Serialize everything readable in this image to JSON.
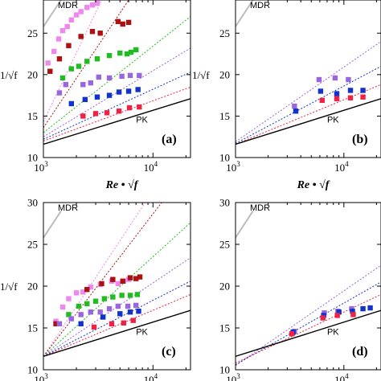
{
  "chart_data": [
    {
      "type": "scatter",
      "panel_label": "(a)",
      "xlabel": "Re • √f",
      "ylabel": "1/√f",
      "xscale": "log",
      "xlim": [
        1000,
        22000
      ],
      "ylim": [
        10,
        29
      ],
      "xticks": [
        1000,
        10000
      ],
      "yticks": [
        10,
        15,
        20,
        25
      ],
      "annotations": [
        "MDR",
        "PK"
      ],
      "reference_lines": [
        {
          "name": "PK",
          "style": "solid",
          "color": "#000000",
          "points": [
            [
              1000,
              11.6
            ],
            [
              22000,
              17.1
            ]
          ]
        },
        {
          "name": "MDR",
          "style": "solid",
          "color": "#bbbbbb",
          "points": [
            [
              1000,
              25.8
            ],
            [
              1450,
              29
            ]
          ]
        }
      ],
      "series": [
        {
          "color": "#ee88ee",
          "dash_line": [
            [
              1000,
              14.3
            ],
            [
              3400,
              29
            ]
          ],
          "points": [
            [
              1100,
              21.4
            ],
            [
              1250,
              22.8
            ],
            [
              1380,
              24.3
            ],
            [
              1500,
              25.3
            ],
            [
              1650,
              25.8
            ],
            [
              1800,
              26.6
            ],
            [
              2000,
              27.2
            ],
            [
              2200,
              27.6
            ],
            [
              2500,
              28.1
            ],
            [
              2800,
              28.4
            ],
            [
              3100,
              28.6
            ]
          ]
        },
        {
          "color": "#aa1111",
          "dash_line": [
            [
              1000,
              13.6
            ],
            [
              6000,
              29
            ]
          ],
          "points": [
            [
              1150,
              20.4
            ],
            [
              1400,
              21.9
            ],
            [
              1700,
              23.5
            ],
            [
              2200,
              24.6
            ],
            [
              2800,
              25.2
            ],
            [
              3300,
              25.0
            ],
            [
              4800,
              26.4
            ],
            [
              5300,
              26.1
            ],
            [
              6000,
              26.3
            ]
          ]
        },
        {
          "color": "#22bb22",
          "dash_line": [
            [
              1000,
              13.0
            ],
            [
              22000,
              27.0
            ]
          ],
          "points": [
            [
              1500,
              19.6
            ],
            [
              1800,
              20.7
            ],
            [
              2100,
              21.0
            ],
            [
              2500,
              21.6
            ],
            [
              3100,
              21.9
            ],
            [
              4000,
              22.3
            ],
            [
              5000,
              22.6
            ],
            [
              5800,
              22.5
            ],
            [
              6300,
              22.7
            ],
            [
              7000,
              23.0
            ]
          ]
        },
        {
          "color": "#9966dd",
          "dash_line": [
            [
              1000,
              12.5
            ],
            [
              22000,
              23.2
            ]
          ],
          "points": [
            [
              1400,
              17.8
            ],
            [
              1600,
              18.8
            ],
            [
              2300,
              18.8
            ],
            [
              2700,
              19.0
            ],
            [
              3200,
              19.7
            ],
            [
              4000,
              19.6
            ],
            [
              5200,
              19.8
            ],
            [
              6200,
              19.9
            ],
            [
              7500,
              19.9
            ]
          ]
        },
        {
          "color": "#1133cc",
          "dash_line": [
            [
              1000,
              12.2
            ],
            [
              22000,
              20.3
            ]
          ],
          "points": [
            [
              1800,
              16.5
            ],
            [
              2400,
              17.0
            ],
            [
              3100,
              17.3
            ],
            [
              4000,
              17.5
            ],
            [
              4900,
              17.9
            ],
            [
              6000,
              18.0
            ],
            [
              7300,
              18.2
            ]
          ]
        },
        {
          "color": "#ee2244",
          "dash_line": [
            [
              1000,
              12.0
            ],
            [
              22000,
              18.5
            ]
          ],
          "points": [
            [
              2300,
              15.0
            ],
            [
              3000,
              15.3
            ],
            [
              3800,
              15.4
            ],
            [
              4900,
              15.6
            ],
            [
              6100,
              16.0
            ],
            [
              7500,
              16.1
            ]
          ]
        }
      ]
    },
    {
      "type": "scatter",
      "panel_label": "(b)",
      "xlabel": "Re • √f",
      "ylabel": "1/√f",
      "xscale": "log",
      "xlim": [
        1000,
        22000
      ],
      "ylim": [
        10,
        29
      ],
      "xticks": [
        1000,
        10000
      ],
      "yticks": [
        10,
        15,
        20,
        25
      ],
      "annotations": [
        "MDR",
        "PK"
      ],
      "reference_lines": [
        {
          "name": "PK",
          "style": "solid",
          "color": "#000000",
          "points": [
            [
              1000,
              11.6
            ],
            [
              22000,
              17.1
            ]
          ]
        },
        {
          "name": "MDR",
          "style": "solid",
          "color": "#bbbbbb",
          "points": [
            [
              1000,
              25.8
            ],
            [
              1450,
              29
            ]
          ]
        }
      ],
      "series": [
        {
          "color": "#9966dd",
          "dash_line": [
            [
              1000,
              11.9
            ],
            [
              22000,
              24.0
            ]
          ],
          "points": [
            [
              3500,
              16.2
            ],
            [
              5900,
              19.4
            ],
            [
              8300,
              19.6
            ],
            [
              11000,
              19.4
            ]
          ]
        },
        {
          "color": "#1133cc",
          "dash_line": [
            [
              1000,
              11.7
            ],
            [
              22000,
              21.0
            ]
          ],
          "points": [
            [
              3600,
              15.6
            ],
            [
              6100,
              18.0
            ],
            [
              8600,
              17.7
            ],
            [
              11500,
              18.1
            ],
            [
              15000,
              18.1
            ]
          ]
        },
        {
          "color": "#ee2244",
          "dash_line": [
            [
              1000,
              11.6
            ],
            [
              22000,
              18.8
            ]
          ],
          "points": [
            [
              6300,
              16.9
            ],
            [
              8600,
              17.1
            ],
            [
              11500,
              17.2
            ],
            [
              15000,
              17.3
            ]
          ]
        }
      ]
    },
    {
      "type": "scatter",
      "panel_label": "(c)",
      "xlabel": "",
      "ylabel": "1/√f",
      "xscale": "log",
      "xlim": [
        1000,
        22000
      ],
      "ylim": [
        10,
        30
      ],
      "xticks": [
        1000,
        10000
      ],
      "yticks": [
        10,
        15,
        20,
        25,
        30
      ],
      "annotations": [
        "MDR",
        "PK"
      ],
      "reference_lines": [
        {
          "name": "PK",
          "style": "solid",
          "color": "#000000",
          "points": [
            [
              1000,
              11.6
            ],
            [
              22000,
              17.1
            ]
          ]
        },
        {
          "name": "MDR",
          "style": "solid",
          "color": "#bbbbbb",
          "points": [
            [
              1000,
              25.8
            ],
            [
              1450,
              29
            ]
          ]
        }
      ],
      "series": [
        {
          "color": "#ee88ee",
          "dash_line": [
            [
              1000,
              11.6
            ],
            [
              8500,
              30
            ]
          ],
          "points": [
            [
              1300,
              15.8
            ],
            [
              1500,
              17.5
            ],
            [
              1700,
              18.5
            ],
            [
              2000,
              19.2
            ],
            [
              2300,
              19.3
            ],
            [
              2700,
              19.9
            ],
            [
              3300,
              20.2
            ],
            [
              4200,
              20.6
            ],
            [
              4800,
              20.3
            ],
            [
              5400,
              20.6
            ],
            [
              6000,
              20.8
            ]
          ]
        },
        {
          "color": "#aa1111",
          "dash_line": [
            [
              1000,
              11.6
            ],
            [
              12000,
              30
            ]
          ],
          "points": [
            [
              1300,
              15.5
            ],
            [
              2500,
              19.6
            ],
            [
              3400,
              20.3
            ],
            [
              4300,
              20.8
            ],
            [
              5300,
              20.6
            ],
            [
              6200,
              21.0
            ],
            [
              7000,
              20.9
            ],
            [
              7600,
              21.1
            ]
          ]
        },
        {
          "color": "#22bb22",
          "dash_line": [
            [
              1000,
              11.6
            ],
            [
              22000,
              27.6
            ]
          ],
          "points": [
            [
              1700,
              16.6
            ],
            [
              2100,
              17.6
            ],
            [
              2500,
              17.9
            ],
            [
              3000,
              18.2
            ],
            [
              3600,
              18.5
            ],
            [
              4300,
              18.7
            ],
            [
              5200,
              18.9
            ],
            [
              6200,
              18.9
            ],
            [
              7200,
              19.0
            ]
          ]
        },
        {
          "color": "#9966dd",
          "dash_line": [
            [
              1000,
              11.6
            ],
            [
              22000,
              23.4
            ]
          ],
          "points": [
            [
              1400,
              15.5
            ],
            [
              1800,
              16.1
            ],
            [
              2200,
              16.6
            ],
            [
              2700,
              16.9
            ],
            [
              3300,
              16.9
            ],
            [
              4000,
              17.3
            ],
            [
              4800,
              17.6
            ],
            [
              5900,
              17.6
            ],
            [
              7000,
              17.7
            ]
          ]
        },
        {
          "color": "#1133cc",
          "dash_line": [
            [
              1000,
              11.6
            ],
            [
              22000,
              20.6
            ]
          ],
          "points": [
            [
              2200,
              15.5
            ],
            [
              3500,
              16.3
            ],
            [
              5000,
              16.7
            ],
            [
              6200,
              16.9
            ],
            [
              7400,
              17.0
            ]
          ]
        },
        {
          "color": "#ee2244",
          "dash_line": [
            [
              1000,
              11.6
            ],
            [
              22000,
              19.0
            ]
          ],
          "points": [
            [
              2900,
              15.1
            ],
            [
              4200,
              15.5
            ],
            [
              5400,
              15.6
            ],
            [
              6600,
              15.9
            ]
          ]
        }
      ]
    },
    {
      "type": "scatter",
      "panel_label": "(d)",
      "xlabel": "",
      "ylabel": "",
      "xscale": "log",
      "xlim": [
        1000,
        22000
      ],
      "ylim": [
        10,
        30
      ],
      "xticks": [
        1000,
        10000
      ],
      "yticks": [
        10,
        15,
        20,
        25,
        30
      ],
      "annotations": [
        "MDR",
        "PK"
      ],
      "reference_lines": [
        {
          "name": "PK",
          "style": "solid",
          "color": "#000000",
          "points": [
            [
              1000,
              11.6
            ],
            [
              22000,
              17.1
            ]
          ]
        },
        {
          "name": "MDR",
          "style": "solid",
          "color": "#bbbbbb",
          "points": [
            [
              1000,
              25.8
            ],
            [
              1450,
              29
            ]
          ]
        }
      ],
      "series": [
        {
          "color": "#9966dd",
          "dash_line": [
            [
              1000,
              10.5
            ],
            [
              22000,
              22.5
            ]
          ],
          "points": [
            [
              3500,
              14.6
            ],
            [
              6600,
              16.8
            ],
            [
              8800,
              17.0
            ],
            [
              11800,
              17.3
            ]
          ]
        },
        {
          "color": "#1133cc",
          "dash_line": [
            [
              1000,
              10.6
            ],
            [
              22000,
              20.5
            ]
          ],
          "points": [
            [
              3400,
              14.5
            ],
            [
              6500,
              16.5
            ],
            [
              9000,
              16.9
            ],
            [
              12000,
              17.0
            ],
            [
              15000,
              17.3
            ],
            [
              17500,
              17.4
            ]
          ]
        },
        {
          "color": "#ee2244",
          "dash_line": [
            [
              1000,
              10.8
            ],
            [
              22000,
              19.0
            ]
          ],
          "points": [
            [
              3300,
              14.3
            ],
            [
              6400,
              16.2
            ],
            [
              8700,
              16.5
            ],
            [
              12200,
              16.6
            ]
          ]
        }
      ]
    }
  ]
}
